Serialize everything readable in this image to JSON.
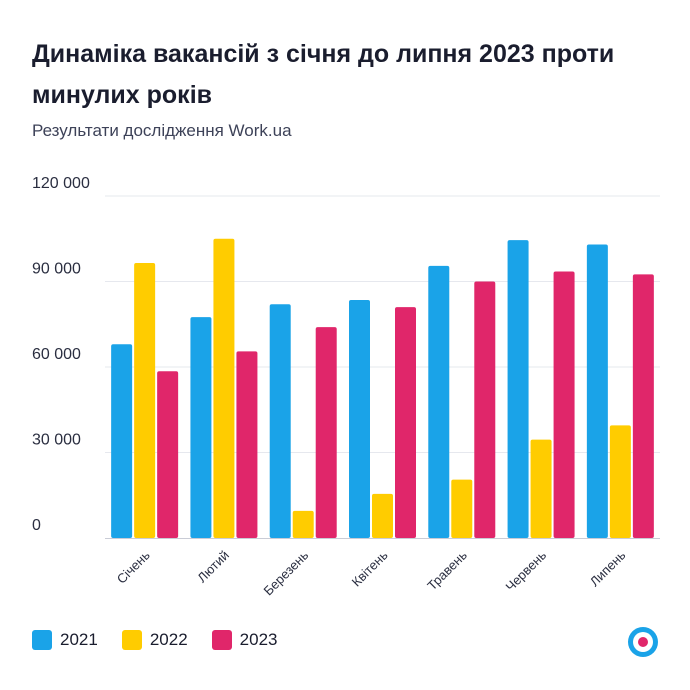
{
  "header": {
    "title": "Динаміка вакансій з січня до липня 2023 проти минулих років",
    "subtitle": "Результати дослідження Work.ua"
  },
  "colors": {
    "2021": "#1aa3e8",
    "2022": "#ffcc00",
    "2023": "#e0266a"
  },
  "chart_data": {
    "type": "bar",
    "categories": [
      "Січень",
      "Лютий",
      "Березень",
      "Квітень",
      "Травень",
      "Червень",
      "Липень"
    ],
    "series": [
      {
        "name": "2021",
        "values": [
          68000,
          77500,
          82000,
          83500,
          95500,
          104500,
          103000
        ]
      },
      {
        "name": "2022",
        "values": [
          96500,
          105000,
          9500,
          15500,
          20500,
          34500,
          39500
        ]
      },
      {
        "name": "2023",
        "values": [
          58500,
          65500,
          74000,
          81000,
          90000,
          93500,
          92500
        ]
      }
    ],
    "yticks": [
      0,
      30000,
      60000,
      90000,
      120000
    ],
    "ytick_labels": [
      "0",
      "30 000",
      "60 000",
      "90 000",
      "120 000"
    ],
    "ylim": [
      0,
      120000
    ],
    "grid": true,
    "legend": "bottom-left"
  },
  "legend": {
    "items": [
      "2021",
      "2022",
      "2023"
    ]
  }
}
